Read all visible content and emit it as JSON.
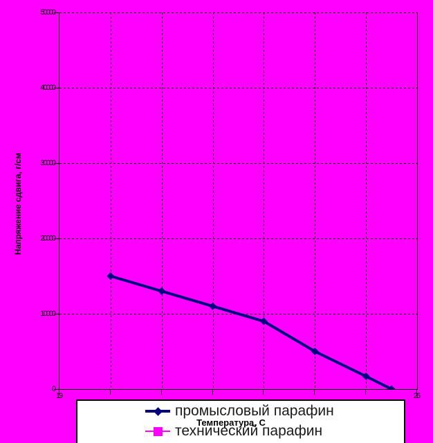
{
  "chart_data": {
    "type": "line",
    "title": "",
    "xlabel": "Температура, С",
    "ylabel": "Напряжение сдвига, г/см",
    "xlim": [
      19,
      26
    ],
    "ylim": [
      0,
      50000
    ],
    "x_gridline_step": 1,
    "y_gridline_step": 10000,
    "x_tick_labels": [
      "19",
      "26"
    ],
    "y_tick_labels": [
      "50000",
      "40000",
      "30000",
      "20000",
      "10000",
      "0"
    ],
    "grid": "dashed-black",
    "background_color": "#FF00FF",
    "axis_color": "#000000",
    "legend_position": "bottom-overlapping",
    "series": [
      {
        "name": "промысловый парафин",
        "color": "#000080",
        "marker": "diamond",
        "line_width": 4,
        "x": [
          20,
          21,
          22,
          23,
          24,
          25,
          25.5
        ],
        "y": [
          15000,
          13000,
          11000,
          9000,
          5000,
          1700,
          0
        ]
      },
      {
        "name": "технический парафин",
        "color": "#FF00FF",
        "marker": "square",
        "line_width": 2,
        "x": [],
        "y": []
      }
    ]
  }
}
